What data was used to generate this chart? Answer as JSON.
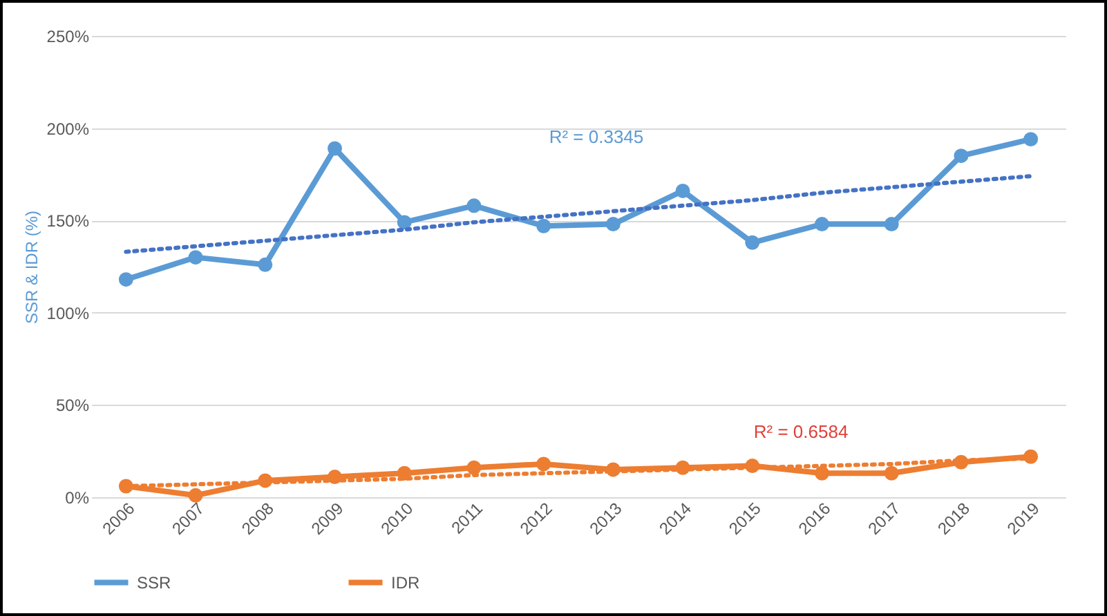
{
  "chart_data": {
    "type": "line",
    "ylabel": "SSR & IDR (%)",
    "categories": [
      "2006",
      "2007",
      "2008",
      "2009",
      "2010",
      "2011",
      "2012",
      "2013",
      "2014",
      "2015",
      "2016",
      "2017",
      "2018",
      "2019"
    ],
    "series": [
      {
        "name": "SSR",
        "color": "#5b9bd5",
        "marker": "circle",
        "values": [
          118,
          130,
          126,
          189,
          149,
          158,
          147,
          148,
          166,
          138,
          148,
          148,
          185,
          194
        ]
      },
      {
        "name": "IDR",
        "color": "#ed7d31",
        "marker": "circle",
        "values": [
          6,
          1,
          9,
          11,
          13,
          16,
          18,
          15,
          16,
          17,
          13,
          13,
          19,
          22
        ]
      },
      {
        "color": "#4472c4",
        "marker": "none",
        "line_style": "dotted",
        "values": [
          133,
          136,
          139,
          142,
          145,
          149,
          152,
          155,
          158,
          161,
          165,
          168,
          171,
          174
        ]
      },
      {
        "color": "#ed7d31",
        "marker": "none",
        "line_style": "dotted",
        "values": [
          6,
          7,
          8,
          9,
          10,
          12,
          13,
          14,
          15,
          16,
          17,
          18,
          20,
          21
        ]
      }
    ],
    "ylim": [
      0,
      250
    ],
    "yticks": [
      {
        "value": 0,
        "label": "0%"
      },
      {
        "value": 50,
        "label": "50%"
      },
      {
        "value": 100,
        "label": "100%"
      },
      {
        "value": 150,
        "label": "150%"
      },
      {
        "value": 200,
        "label": "200%"
      },
      {
        "value": 250,
        "label": "250%"
      }
    ],
    "annotations": [
      "R² = 0.3345",
      "R² = 0.6584"
    ],
    "grid": "y",
    "legend": "bottom"
  }
}
